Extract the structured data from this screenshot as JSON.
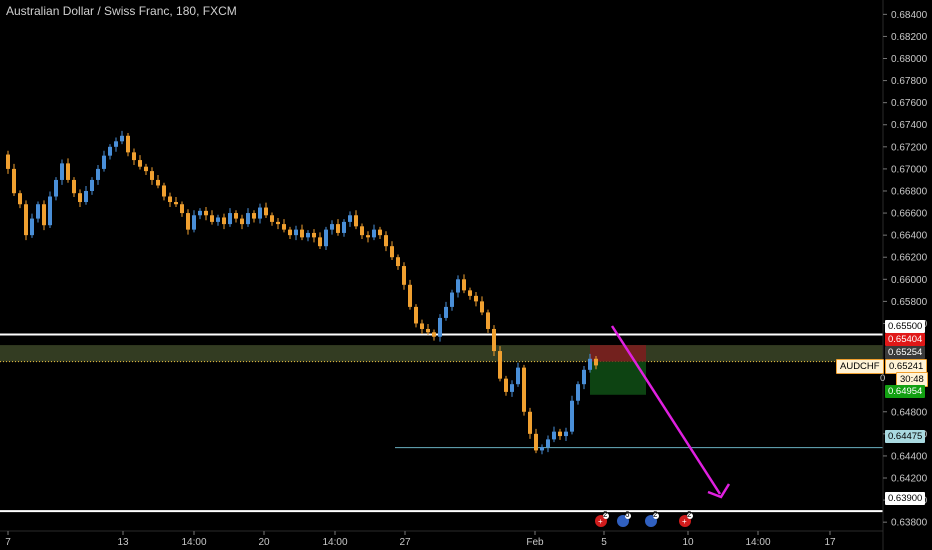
{
  "chart_title": "Australian Dollar / Swiss Franc, 180, FXCM",
  "chart_data": {
    "type": "candlestick",
    "symbol": "AUDCHF",
    "ylim": [
      0.6372,
      0.6853
    ],
    "y_ticks": [
      "0.68400",
      "0.68200",
      "0.68000",
      "0.67800",
      "0.67600",
      "0.67400",
      "0.67200",
      "0.67000",
      "0.66800",
      "0.66600",
      "0.66400",
      "0.66200",
      "0.66000",
      "0.65800",
      "0.65600",
      "0.64800",
      "0.64600",
      "0.64400",
      "0.64200",
      "0.64000",
      "0.63800"
    ],
    "x_ticks": [
      "7",
      "13",
      "14:00",
      "20",
      "14:00",
      "27",
      "Feb",
      "5",
      "10",
      "14:00",
      "17"
    ],
    "colors": {
      "up": "#4a8fd8",
      "down": "#f0a030",
      "background": "#000000"
    },
    "price_series": [
      [
        0,
        0.6713
      ],
      [
        6,
        0.67
      ],
      [
        12,
        0.6678
      ],
      [
        18,
        0.6668
      ],
      [
        24,
        0.664
      ],
      [
        30,
        0.6655
      ],
      [
        36,
        0.6668
      ],
      [
        42,
        0.6649
      ],
      [
        48,
        0.6675
      ],
      [
        54,
        0.669
      ],
      [
        60,
        0.6705
      ],
      [
        66,
        0.669
      ],
      [
        72,
        0.6678
      ],
      [
        78,
        0.667
      ],
      [
        84,
        0.668
      ],
      [
        90,
        0.669
      ],
      [
        96,
        0.67
      ],
      [
        102,
        0.6712
      ],
      [
        108,
        0.672
      ],
      [
        114,
        0.6725
      ],
      [
        120,
        0.673
      ],
      [
        126,
        0.6715
      ],
      [
        132,
        0.6708
      ],
      [
        138,
        0.6702
      ],
      [
        144,
        0.6698
      ],
      [
        150,
        0.669
      ],
      [
        156,
        0.6685
      ],
      [
        162,
        0.6675
      ],
      [
        168,
        0.667
      ],
      [
        174,
        0.6668
      ],
      [
        180,
        0.666
      ],
      [
        186,
        0.6645
      ],
      [
        192,
        0.6658
      ],
      [
        198,
        0.6662
      ],
      [
        204,
        0.6658
      ],
      [
        210,
        0.6652
      ],
      [
        216,
        0.6656
      ],
      [
        222,
        0.665
      ],
      [
        228,
        0.666
      ],
      [
        234,
        0.6655
      ],
      [
        240,
        0.665
      ],
      [
        246,
        0.666
      ],
      [
        252,
        0.6655
      ],
      [
        258,
        0.6665
      ],
      [
        264,
        0.6658
      ],
      [
        270,
        0.6652
      ],
      [
        276,
        0.665
      ],
      [
        282,
        0.6645
      ],
      [
        288,
        0.664
      ],
      [
        294,
        0.6645
      ],
      [
        300,
        0.6638
      ],
      [
        306,
        0.6642
      ],
      [
        312,
        0.6638
      ],
      [
        318,
        0.663
      ],
      [
        324,
        0.6645
      ],
      [
        330,
        0.665
      ],
      [
        336,
        0.6642
      ],
      [
        342,
        0.6652
      ],
      [
        348,
        0.6658
      ],
      [
        354,
        0.6648
      ],
      [
        360,
        0.664
      ],
      [
        366,
        0.6638
      ],
      [
        372,
        0.6645
      ],
      [
        378,
        0.664
      ],
      [
        384,
        0.663
      ],
      [
        390,
        0.662
      ],
      [
        396,
        0.6612
      ],
      [
        402,
        0.6595
      ],
      [
        408,
        0.6575
      ],
      [
        414,
        0.656
      ],
      [
        420,
        0.6555
      ],
      [
        426,
        0.6552
      ],
      [
        432,
        0.6548
      ],
      [
        438,
        0.6565
      ],
      [
        444,
        0.6575
      ],
      [
        450,
        0.6588
      ],
      [
        456,
        0.66
      ],
      [
        462,
        0.659
      ],
      [
        468,
        0.6585
      ],
      [
        474,
        0.658
      ],
      [
        480,
        0.657
      ],
      [
        486,
        0.6555
      ],
      [
        492,
        0.6535
      ],
      [
        498,
        0.651
      ],
      [
        504,
        0.6498
      ],
      [
        510,
        0.6505
      ],
      [
        516,
        0.652
      ],
      [
        522,
        0.648
      ],
      [
        528,
        0.646
      ],
      [
        534,
        0.6445
      ],
      [
        540,
        0.6448
      ],
      [
        546,
        0.6455
      ],
      [
        552,
        0.6462
      ],
      [
        558,
        0.6458
      ],
      [
        564,
        0.6462
      ],
      [
        570,
        0.649
      ],
      [
        576,
        0.6505
      ],
      [
        582,
        0.6518
      ],
      [
        588,
        0.6528
      ],
      [
        594,
        0.6522
      ]
    ],
    "levels": [
      {
        "price": "0.65500",
        "value": 0.655,
        "label_bg": "#ffffff",
        "label_fg": "#000000"
      },
      {
        "price": "0.64475",
        "value": 0.64475,
        "label_bg": "#a9d9e0",
        "label_fg": "#000000"
      },
      {
        "price": "0.63900",
        "value": 0.639,
        "label_bg": "#ffffff",
        "label_fg": "#000000"
      }
    ],
    "zone": {
      "from": 0.65254,
      "to": 0.65404
    },
    "position": {
      "stop": "0.65404",
      "entry": "0.65254",
      "target": "0.64954",
      "stop_value": 0.65404,
      "entry_value": 0.65254,
      "target_value": 0.64954
    },
    "current_price": {
      "symbol": "AUDCHF",
      "price": "0.65241",
      "countdown": "30:48",
      "value": 0.65241
    },
    "countdown_prefix": "0"
  },
  "events": [
    {
      "type": "flag",
      "badge": "2"
    },
    {
      "type": "flag",
      "badge": "6"
    },
    {
      "type": "flag",
      "badge": "2"
    },
    {
      "type": "flag",
      "badge": "2"
    }
  ]
}
